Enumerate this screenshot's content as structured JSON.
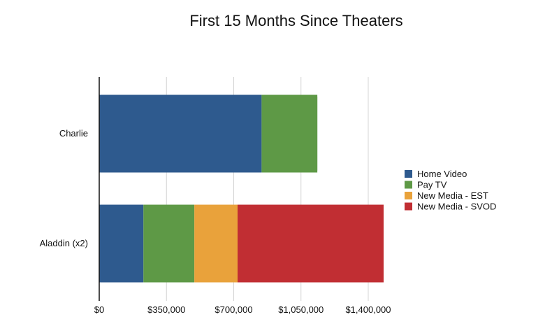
{
  "chart_data": {
    "type": "bar",
    "orientation": "horizontal",
    "stacked": true,
    "title": "First 15 Months Since Theaters",
    "categories": [
      "Charlie",
      "Aladdin (x2)"
    ],
    "series": [
      {
        "name": "Home Video",
        "color": "#2e5a8e",
        "values": [
          845000,
          230000
        ]
      },
      {
        "name": "Pay TV",
        "color": "#5e9946",
        "values": [
          290000,
          265000
        ]
      },
      {
        "name": "New Media - EST",
        "color": "#e9a23b",
        "values": [
          0,
          225000
        ]
      },
      {
        "name": "New Media - SVOD",
        "color": "#c12e33",
        "values": [
          0,
          760000
        ]
      }
    ],
    "xlim": [
      0,
      1400000
    ],
    "x_ticks": [
      0,
      350000,
      700000,
      1050000,
      1400000
    ],
    "x_tick_labels": [
      "$0",
      "$350,000",
      "$700,000",
      "$1,050,000",
      "$1,400,000"
    ],
    "xlabel": "",
    "ylabel": "",
    "grid": "vertical",
    "legend_position": "right"
  }
}
